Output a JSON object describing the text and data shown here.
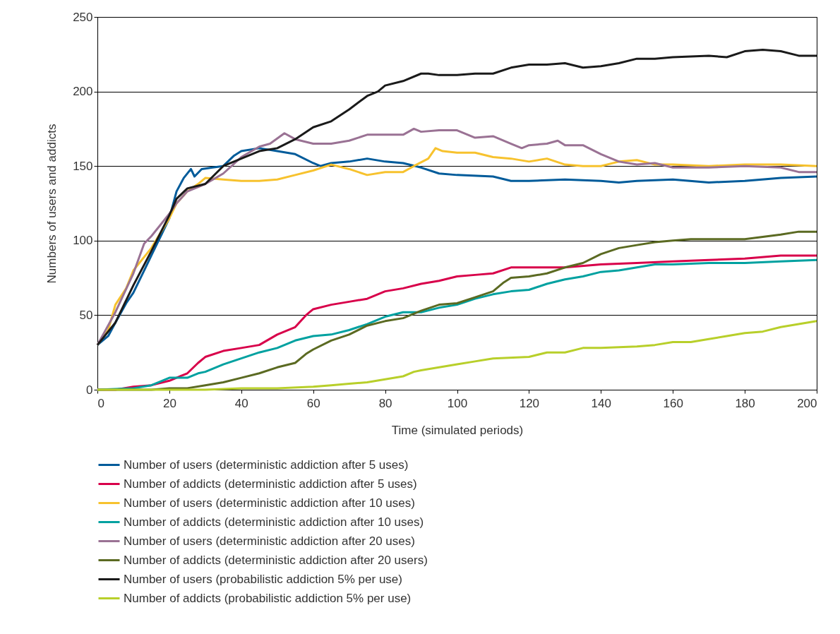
{
  "chart_data": {
    "type": "line",
    "xlabel": "Time (simulated periods)",
    "ylabel": "Numbers of users and addicts",
    "xlim": [
      0,
      200
    ],
    "xticks": [
      0,
      20,
      40,
      60,
      80,
      100,
      120,
      140,
      160,
      180,
      200
    ],
    "ylim": [
      0,
      250
    ],
    "yticks": [
      0,
      50,
      100,
      150,
      200,
      250
    ],
    "grid": "y",
    "legend": "bottom",
    "line_style": "solid",
    "marker": "none",
    "series": [
      {
        "name": "Number of users (deterministic addiction after 5 uses)",
        "color": "#005b9a",
        "x": [
          0,
          3,
          5,
          8,
          10,
          13,
          15,
          18,
          20,
          22,
          24,
          26,
          27,
          29,
          32,
          35,
          38,
          40,
          45,
          50,
          55,
          60,
          62,
          65,
          70,
          75,
          80,
          85,
          90,
          95,
          100,
          110,
          115,
          120,
          130,
          140,
          145,
          150,
          160,
          170,
          180,
          190,
          200
        ],
        "values": [
          30,
          36,
          45,
          58,
          65,
          80,
          90,
          105,
          115,
          133,
          142,
          148,
          143,
          148,
          149,
          150,
          157,
          160,
          162,
          160,
          158,
          152,
          150,
          152,
          153,
          155,
          153,
          152,
          149,
          145,
          144,
          143,
          140,
          140,
          141,
          140,
          139,
          140,
          141,
          139,
          140,
          142,
          143
        ]
      },
      {
        "name": "Number of addicts (deterministic addiction after 5 uses)",
        "color": "#d8004a",
        "x": [
          0,
          5,
          10,
          15,
          20,
          25,
          28,
          30,
          35,
          40,
          45,
          50,
          55,
          58,
          60,
          65,
          70,
          75,
          80,
          85,
          90,
          95,
          100,
          105,
          110,
          115,
          120,
          130,
          140,
          150,
          160,
          170,
          180,
          190,
          200
        ],
        "values": [
          0,
          0,
          2,
          3,
          6,
          11,
          18,
          22,
          26,
          28,
          30,
          37,
          42,
          50,
          54,
          57,
          59,
          61,
          66,
          68,
          71,
          73,
          76,
          77,
          78,
          82,
          82,
          82,
          84,
          85,
          86,
          87,
          88,
          90,
          90
        ]
      },
      {
        "name": "Number of users (deterministic addiction after 10 uses)",
        "color": "#f7c22e",
        "x": [
          0,
          3,
          5,
          8,
          10,
          15,
          20,
          22,
          25,
          28,
          30,
          35,
          40,
          45,
          50,
          55,
          60,
          65,
          70,
          75,
          80,
          85,
          88,
          92,
          94,
          96,
          100,
          105,
          110,
          115,
          120,
          125,
          130,
          135,
          140,
          145,
          150,
          155,
          160,
          170,
          180,
          190,
          200
        ],
        "values": [
          30,
          40,
          57,
          68,
          80,
          95,
          115,
          125,
          133,
          138,
          142,
          141,
          140,
          140,
          141,
          144,
          147,
          151,
          148,
          144,
          146,
          146,
          150,
          155,
          162,
          160,
          159,
          159,
          156,
          155,
          153,
          155,
          151,
          150,
          150,
          153,
          154,
          151,
          151,
          150,
          151,
          151,
          150
        ]
      },
      {
        "name": "Number of addicts (deterministic addiction after 10 uses)",
        "color": "#00a1a0",
        "x": [
          0,
          10,
          15,
          18,
          20,
          25,
          28,
          30,
          35,
          40,
          45,
          50,
          55,
          60,
          65,
          70,
          75,
          80,
          85,
          90,
          95,
          100,
          105,
          110,
          115,
          120,
          125,
          130,
          135,
          140,
          145,
          150,
          155,
          160,
          170,
          180,
          190,
          200
        ],
        "values": [
          0,
          1,
          3,
          6,
          8,
          8,
          11,
          12,
          17,
          21,
          25,
          28,
          33,
          36,
          37,
          40,
          44,
          49,
          52,
          52,
          55,
          57,
          61,
          64,
          66,
          67,
          71,
          74,
          76,
          79,
          80,
          82,
          84,
          84,
          85,
          85,
          86,
          87
        ]
      },
      {
        "name": "Number of users (deterministic addiction after 20 uses)",
        "color": "#9a7294",
        "x": [
          0,
          5,
          10,
          13,
          15,
          18,
          20,
          22,
          25,
          28,
          30,
          35,
          40,
          45,
          48,
          52,
          55,
          60,
          65,
          70,
          75,
          80,
          85,
          88,
          90,
          95,
          100,
          105,
          110,
          115,
          118,
          120,
          125,
          128,
          130,
          135,
          140,
          145,
          150,
          155,
          160,
          170,
          180,
          190,
          195,
          200
        ],
        "values": [
          30,
          52,
          78,
          98,
          103,
          112,
          118,
          125,
          133,
          136,
          138,
          145,
          156,
          163,
          165,
          172,
          168,
          165,
          165,
          167,
          171,
          171,
          171,
          175,
          173,
          174,
          174,
          169,
          170,
          165,
          162,
          164,
          165,
          167,
          164,
          164,
          158,
          153,
          151,
          152,
          149,
          149,
          150,
          149,
          146,
          146
        ]
      },
      {
        "name": "Number of addicts (deterministic addiction after 20 users)",
        "color": "#5b6a22",
        "x": [
          0,
          15,
          20,
          25,
          30,
          35,
          40,
          45,
          50,
          55,
          58,
          60,
          65,
          70,
          75,
          80,
          85,
          90,
          95,
          100,
          105,
          110,
          113,
          115,
          120,
          125,
          130,
          135,
          140,
          145,
          150,
          155,
          160,
          165,
          170,
          180,
          190,
          195,
          200
        ],
        "values": [
          0,
          0,
          1,
          1,
          3,
          5,
          8,
          11,
          15,
          18,
          24,
          27,
          33,
          37,
          43,
          46,
          48,
          53,
          57,
          58,
          62,
          66,
          72,
          75,
          76,
          78,
          82,
          85,
          91,
          95,
          97,
          99,
          100,
          101,
          101,
          101,
          104,
          106,
          106
        ]
      },
      {
        "name": "Number of users (probabilistic addiction 5% per use)",
        "color": "#1a1a1a",
        "x": [
          0,
          5,
          10,
          15,
          20,
          22,
          25,
          30,
          35,
          40,
          45,
          50,
          55,
          60,
          65,
          70,
          75,
          78,
          80,
          85,
          90,
          92,
          95,
          100,
          105,
          110,
          115,
          120,
          125,
          130,
          135,
          140,
          145,
          150,
          155,
          160,
          170,
          175,
          180,
          185,
          190,
          195,
          200
        ],
        "values": [
          30,
          45,
          70,
          93,
          117,
          128,
          135,
          138,
          150,
          155,
          160,
          162,
          168,
          176,
          180,
          188,
          197,
          200,
          204,
          207,
          212,
          212,
          211,
          211,
          212,
          212,
          216,
          218,
          218,
          219,
          216,
          217,
          219,
          222,
          222,
          223,
          224,
          223,
          227,
          228,
          227,
          224,
          224
        ]
      },
      {
        "name": "Number of addicts (probabilistic addiction 5% per use)",
        "color": "#b8cf2a",
        "x": [
          0,
          20,
          30,
          40,
          50,
          60,
          65,
          70,
          75,
          80,
          85,
          88,
          90,
          95,
          100,
          105,
          110,
          120,
          125,
          130,
          135,
          140,
          150,
          155,
          160,
          165,
          170,
          175,
          180,
          185,
          190,
          195,
          200
        ],
        "values": [
          0,
          0,
          0,
          1,
          1,
          2,
          3,
          4,
          5,
          7,
          9,
          12,
          13,
          15,
          17,
          19,
          21,
          22,
          25,
          25,
          28,
          28,
          29,
          30,
          32,
          32,
          34,
          36,
          38,
          39,
          42,
          44,
          46
        ]
      }
    ]
  }
}
